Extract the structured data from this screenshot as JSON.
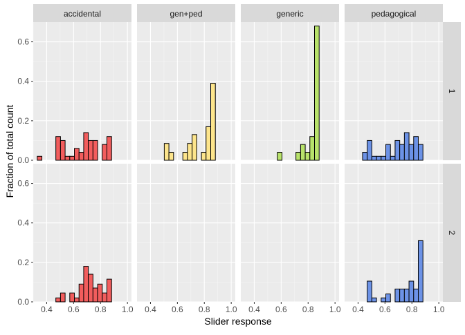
{
  "chart_data": {
    "type": "histogram-facet-grid",
    "xlabel": "Slider response",
    "ylabel": "Fraction of total count",
    "xlim": [
      0.3,
      1.03
    ],
    "ylim": [
      0,
      0.7
    ],
    "x_ticks": [
      0.4,
      0.6,
      0.8,
      1.0
    ],
    "x_tick_labels": [
      "0.4",
      "0.6",
      "0.8",
      "1.0"
    ],
    "y_ticks": [
      0.0,
      0.2,
      0.4,
      0.6
    ],
    "y_tick_labels": [
      "0.0",
      "0.2",
      "0.4",
      "0.6"
    ],
    "bin_width": 0.0345,
    "grid": true,
    "columns": [
      "accidental",
      "gen+ped",
      "generic",
      "pedagogical"
    ],
    "rows": [
      "1",
      "2"
    ],
    "colors": {
      "accidental": "#f25d5d",
      "gen+ped": "#fde58c",
      "generic": "#b8e26b",
      "pedagogical": "#6c92e6"
    },
    "panels": [
      {
        "row": "1",
        "column": "accidental",
        "start": 0.33,
        "values": [
          0.02,
          0,
          0,
          0,
          0.12,
          0.1,
          0.02,
          0.02,
          0.06,
          0.04,
          0.14,
          0.1,
          0.1,
          0.0,
          0.08,
          0.12
        ]
      },
      {
        "row": "1",
        "column": "gen+ped",
        "start": 0.33,
        "values": [
          0,
          0,
          0,
          0,
          0,
          0.085,
          0.04,
          0,
          0,
          0.04,
          0.085,
          0.13,
          0,
          0.04,
          0.17,
          0.39
        ]
      },
      {
        "row": "1",
        "column": "generic",
        "start": 0.33,
        "values": [
          0,
          0,
          0,
          0,
          0,
          0,
          0,
          0.04,
          0,
          0,
          0,
          0.04,
          0.08,
          0.04,
          0.12,
          0.68
        ]
      },
      {
        "row": "1",
        "column": "pedagogical",
        "start": 0.33,
        "values": [
          0,
          0,
          0,
          0.04,
          0.1,
          0.02,
          0.02,
          0.02,
          0.08,
          0.02,
          0.1,
          0.08,
          0.14,
          0.08,
          0.12,
          0.08
        ]
      },
      {
        "row": "2",
        "column": "accidental",
        "start": 0.33,
        "values": [
          0,
          0,
          0,
          0,
          0.02,
          0.045,
          0,
          0.045,
          0.02,
          0.09,
          0.18,
          0.14,
          0.07,
          0.09,
          0.045,
          0.115
        ]
      },
      {
        "row": "2",
        "column": "gen+ped",
        "start": 0.33,
        "values": []
      },
      {
        "row": "2",
        "column": "generic",
        "start": 0.33,
        "values": []
      },
      {
        "row": "2",
        "column": "pedagogical",
        "start": 0.33,
        "values": [
          0,
          0,
          0,
          0,
          0.105,
          0.02,
          0,
          0.02,
          0.04,
          0,
          0.065,
          0.065,
          0.065,
          0.105,
          0.065,
          0.31
        ]
      }
    ]
  }
}
